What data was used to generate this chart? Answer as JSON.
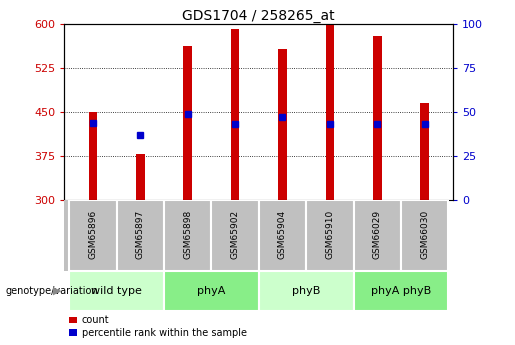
{
  "title": "GDS1704 / 258265_at",
  "samples": [
    "GSM65896",
    "GSM65897",
    "GSM65898",
    "GSM65902",
    "GSM65904",
    "GSM65910",
    "GSM66029",
    "GSM66030"
  ],
  "bar_tops": [
    450,
    378,
    562,
    592,
    558,
    600,
    580,
    465
  ],
  "percentile_ranks": [
    44,
    37,
    49,
    43,
    47,
    43,
    43,
    43
  ],
  "groups": [
    {
      "label": "wild type",
      "indices": [
        0,
        1
      ],
      "color": "#ccffcc"
    },
    {
      "label": "phyA",
      "indices": [
        2,
        3
      ],
      "color": "#88ee88"
    },
    {
      "label": "phyB",
      "indices": [
        4,
        5
      ],
      "color": "#ccffcc"
    },
    {
      "label": "phyA phyB",
      "indices": [
        6,
        7
      ],
      "color": "#88ee88"
    }
  ],
  "ylim_left": [
    300,
    600
  ],
  "ylim_right": [
    0,
    100
  ],
  "yticks_left": [
    300,
    375,
    450,
    525,
    600
  ],
  "yticks_right": [
    0,
    25,
    50,
    75,
    100
  ],
  "bar_color": "#cc0000",
  "dot_color": "#0000cc",
  "left_tick_color": "#cc0000",
  "right_tick_color": "#0000cc",
  "sample_box_color": "#c0c0c0",
  "sample_box_edge": "#ffffff",
  "bar_width": 0.18,
  "legend_items": [
    "count",
    "percentile rank within the sample"
  ]
}
